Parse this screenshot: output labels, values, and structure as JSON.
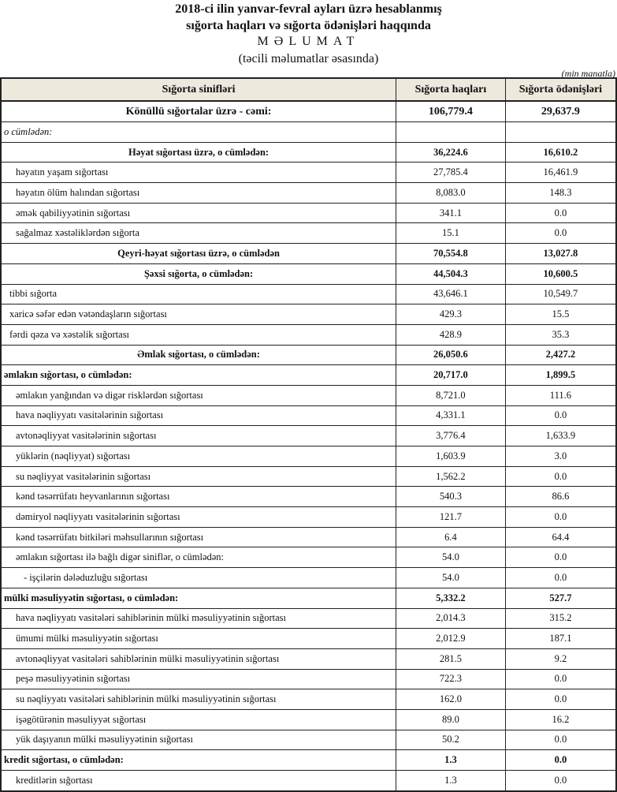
{
  "title": {
    "line1": "2018-ci ilin yanvar-fevral ayları üzrə hesablanmış",
    "line2": "sığorta haqları və sığorta ödənişləri haqqında",
    "line3": "MƏLUMAT",
    "line4": "(təcili məlumatlar əsasında)",
    "unit": "(min manatla)"
  },
  "table": {
    "headers": [
      "Sığorta sinifləri",
      "Sığorta haqları",
      "Sığorta ödənişləri"
    ],
    "rows": [
      {
        "style": "total",
        "name": "Könüllü sığortalar üzrə - cəmi:",
        "premiums": "106,779.4",
        "payments": "29,637.9"
      },
      {
        "style": "note",
        "name": "o cümlədən:",
        "premiums": "",
        "payments": ""
      },
      {
        "style": "center",
        "name": "Həyat sığortası üzrə, o cümlədən:",
        "premiums": "36,224.6",
        "payments": "16,610.2"
      },
      {
        "style": "sub",
        "name": "həyatın yaşam sığortası",
        "premiums": "27,785.4",
        "payments": "16,461.9"
      },
      {
        "style": "sub",
        "name": "həyatın ölüm halından sığortası",
        "premiums": "8,083.0",
        "payments": "148.3"
      },
      {
        "style": "sub",
        "name": "əmək qabiliyyətinin sığortası",
        "premiums": "341.1",
        "payments": "0.0"
      },
      {
        "style": "sub",
        "name": "sağalmaz xəstəliklərdən sığorta",
        "premiums": "15.1",
        "payments": "0.0"
      },
      {
        "style": "center",
        "name": "Qeyri-həyat sığortası üzrə, o cümlədən",
        "premiums": "70,554.8",
        "payments": "13,027.8"
      },
      {
        "style": "center",
        "name": "Şəxsi sığorta,  o cümlədən:",
        "premiums": "44,504.3",
        "payments": "10,600.5"
      },
      {
        "style": "subl",
        "name": "tibbi sığorta",
        "premiums": "43,646.1",
        "payments": "10,549.7"
      },
      {
        "style": "subl",
        "name": "xaricə səfər edən vətəndaşların sığortası",
        "premiums": "429.3",
        "payments": "15.5"
      },
      {
        "style": "subl",
        "name": "fərdi qəza və xəstəlik sığortası",
        "premiums": "428.9",
        "payments": "35.3"
      },
      {
        "style": "center",
        "name": "Əmlak sığortası, o cümlədən:",
        "premiums": "26,050.6",
        "payments": "2,427.2"
      },
      {
        "style": "section",
        "name": "əmlakın sığortası,  o cümlədən:",
        "premiums": "20,717.0",
        "payments": "1,899.5"
      },
      {
        "style": "sub",
        "name": "əmlakın yanğından və digər risklərdən sığortası",
        "premiums": "8,721.0",
        "payments": "111.6"
      },
      {
        "style": "sub",
        "name": "hava nəqliyyatı vasitələrinin sığortası",
        "premiums": "4,331.1",
        "payments": "0.0"
      },
      {
        "style": "sub",
        "name": "avtonəqliyyat vasitələrinin sığortası",
        "premiums": "3,776.4",
        "payments": "1,633.9"
      },
      {
        "style": "sub",
        "name": "yüklərin (nəqliyyat) sığortası",
        "premiums": "1,603.9",
        "payments": "3.0"
      },
      {
        "style": "sub",
        "name": "su nəqliyyat vasitələrinin sığortası",
        "premiums": "1,562.2",
        "payments": "0.0"
      },
      {
        "style": "sub",
        "name": "kənd təsərrüfatı heyvanlarının sığortası",
        "premiums": "540.3",
        "payments": "86.6"
      },
      {
        "style": "sub",
        "name": "dəmiryol nəqliyyatı vasitələrinin sığortası",
        "premiums": "121.7",
        "payments": "0.0"
      },
      {
        "style": "sub",
        "name": "kənd təsərrüfatı bitkiləri məhsullarının sığortası",
        "premiums": "6.4",
        "payments": "64.4"
      },
      {
        "style": "sub",
        "name": "əmlakın sığortası ilə bağlı digər siniflər,  o cümlədən:",
        "premiums": "54.0",
        "payments": "0.0"
      },
      {
        "style": "sub2",
        "name": "- işçilərin dələduzluğu sığortası",
        "premiums": "54.0",
        "payments": "0.0"
      },
      {
        "style": "section",
        "name": "mülki məsuliyyətin sığortası, o cümlədən:",
        "premiums": "5,332.2",
        "payments": "527.7"
      },
      {
        "style": "sub",
        "name": "hava nəqliyyatı vasitələri sahiblərinin mülki məsuliyyətinin sığortası",
        "premiums": "2,014.3",
        "payments": "315.2"
      },
      {
        "style": "sub",
        "name": "ümumi mülki məsuliyyətin sığortası",
        "premiums": "2,012.9",
        "payments": "187.1"
      },
      {
        "style": "sub",
        "name": "avtonəqliyyat vasitələri sahiblərinin mülki məsuliyyətinin sığortası",
        "premiums": "281.5",
        "payments": "9.2"
      },
      {
        "style": "sub",
        "name": "peşə məsuliyyətinin sığortası",
        "premiums": "722.3",
        "payments": "0.0"
      },
      {
        "style": "sub",
        "name": "su nəqliyyatı vasitələri sahiblərinin mülki məsuliyyətinin sığortası",
        "premiums": "162.0",
        "payments": "0.0"
      },
      {
        "style": "sub",
        "name": "işəgötürənin məsuliyyət sığortası",
        "premiums": "89.0",
        "payments": "16.2"
      },
      {
        "style": "sub",
        "name": "yük daşıyanın mülki məsuliyyətinin sığortası",
        "premiums": "50.2",
        "payments": "0.0"
      },
      {
        "style": "section",
        "name": "kredit sığortası, o cümlədən:",
        "premiums": "1.3",
        "payments": "0.0"
      },
      {
        "style": "sub",
        "name": "kreditlərin sığortası",
        "premiums": "1.3",
        "payments": "0.0"
      }
    ]
  }
}
